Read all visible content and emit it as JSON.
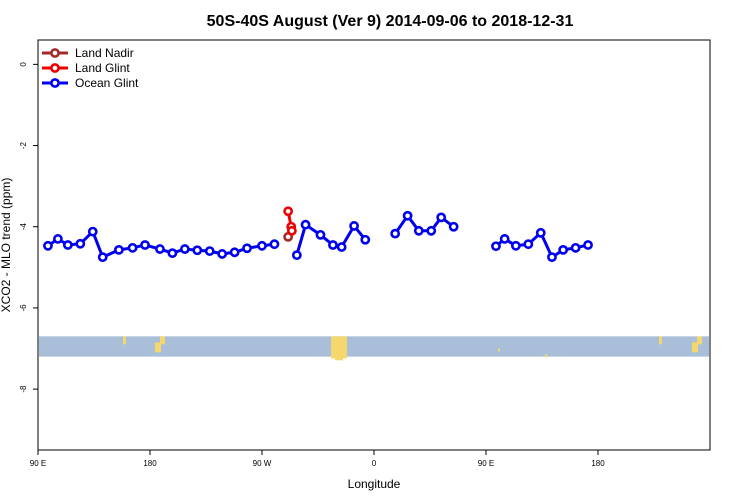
{
  "chart_data": {
    "type": "line",
    "title": "50S-40S August (Ver 9)   2014-09-06 to 2018-12-31",
    "xlabel": "Longitude",
    "ylabel": "XCO2 - MLO trend (ppm)",
    "xlim": [
      90,
      630
    ],
    "ylim": [
      -9.5,
      0.6
    ],
    "x_ticks": [
      {
        "value": 90,
        "label": "90 E"
      },
      {
        "value": 180,
        "label": "180"
      },
      {
        "value": 270,
        "label": "90 W"
      },
      {
        "value": 360,
        "label": "0"
      },
      {
        "value": 450,
        "label": "90 E"
      },
      {
        "value": 540,
        "label": "180"
      }
    ],
    "y_ticks": [
      {
        "value": 0,
        "label": "0"
      },
      {
        "value": -2,
        "label": "-2"
      },
      {
        "value": -4,
        "label": "-4"
      },
      {
        "value": -6,
        "label": "-6"
      },
      {
        "value": -8,
        "label": "-8"
      }
    ],
    "legend_position": "top-left",
    "land_band": {
      "y_range": [
        -7.2,
        -6.7
      ],
      "color": "#a9bed9",
      "land_color": "#f5d76e"
    },
    "series": [
      {
        "name": "Land Nadir",
        "color": "#a52a2a",
        "segments": [
          [
            [
              291,
              -4.25
            ]
          ]
        ]
      },
      {
        "name": "Land Glint",
        "color": "#ee0000",
        "segments": [
          [
            [
              291,
              -3.62
            ],
            [
              293.5,
              -4.0
            ],
            [
              294,
              -4.1
            ]
          ]
        ]
      },
      {
        "name": "Ocean Glint",
        "color": "#0000ee",
        "segments": [
          [
            [
              98,
              -4.47
            ],
            [
              106,
              -4.3
            ],
            [
              114,
              -4.45
            ],
            [
              124,
              -4.42
            ],
            [
              134,
              -4.12
            ],
            [
              142,
              -4.75
            ],
            [
              155,
              -4.57
            ],
            [
              166,
              -4.52
            ],
            [
              176,
              -4.45
            ],
            [
              188,
              -4.55
            ],
            [
              198,
              -4.65
            ],
            [
              208,
              -4.55
            ],
            [
              218,
              -4.58
            ],
            [
              228,
              -4.6
            ],
            [
              238,
              -4.67
            ],
            [
              248,
              -4.63
            ],
            [
              258,
              -4.53
            ],
            [
              270,
              -4.47
            ],
            [
              280,
              -4.43
            ]
          ],
          [
            [
              298,
              -4.7
            ],
            [
              305,
              -3.95
            ],
            [
              317,
              -4.2
            ],
            [
              327,
              -4.45
            ],
            [
              334,
              -4.5
            ],
            [
              344,
              -3.98
            ],
            [
              353,
              -4.32
            ]
          ],
          [
            [
              377,
              -4.17
            ],
            [
              387,
              -3.73
            ],
            [
              396,
              -4.1
            ],
            [
              406,
              -4.1
            ],
            [
              414,
              -3.77
            ],
            [
              424,
              -4.0
            ]
          ],
          [
            [
              458,
              -4.48
            ],
            [
              465,
              -4.3
            ],
            [
              474,
              -4.47
            ],
            [
              484,
              -4.43
            ],
            [
              494,
              -4.15
            ],
            [
              503,
              -4.75
            ],
            [
              512,
              -4.57
            ],
            [
              522,
              -4.52
            ],
            [
              532,
              -4.45
            ]
          ]
        ]
      }
    ]
  }
}
